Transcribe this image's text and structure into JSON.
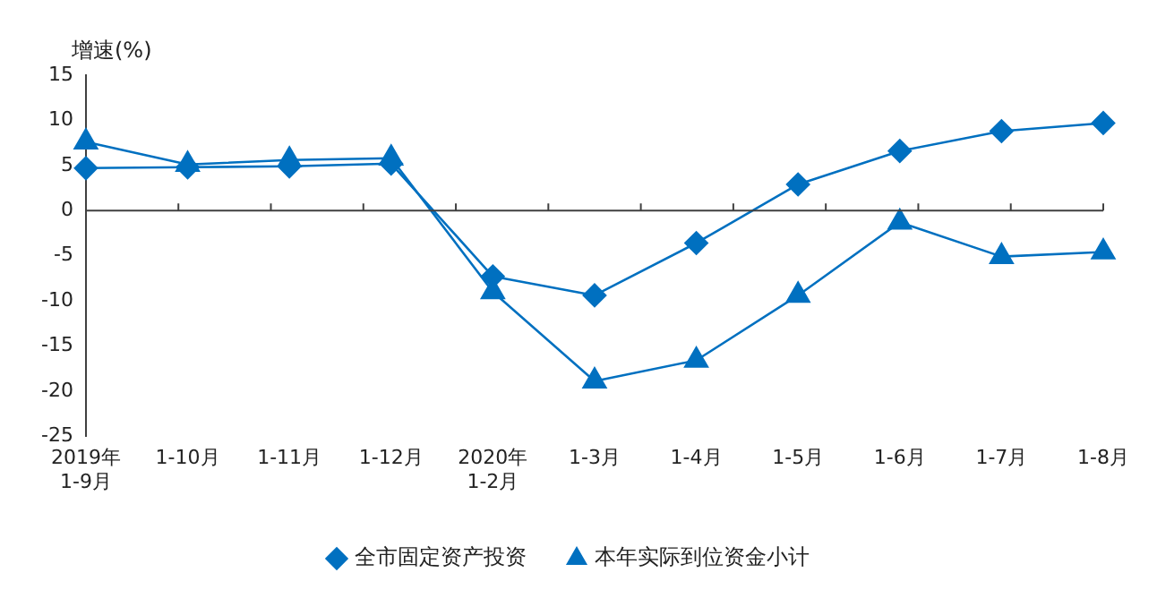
{
  "chart_data": {
    "type": "line",
    "ylabel": "增速(%)",
    "categories": [
      "2019年\n1-9月",
      "1-10月",
      "1-11月",
      "1-12月",
      "2020年\n1-2月",
      "1-3月",
      "1-4月",
      "1-5月",
      "1-6月",
      "1-7月",
      "1-8月"
    ],
    "series": [
      {
        "name": "全市固定资产投资",
        "color": "#0070c0",
        "marker": "diamond",
        "values": [
          4.7,
          4.8,
          4.9,
          5.2,
          -7.3,
          -9.4,
          -3.6,
          2.9,
          6.6,
          8.8,
          9.7
        ]
      },
      {
        "name": "本年实际到位资金小计",
        "color": "#0070c0",
        "marker": "triangle",
        "values": [
          7.6,
          5.1,
          5.6,
          5.8,
          -9.0,
          -18.9,
          -16.6,
          -9.4,
          -1.3,
          -5.1,
          -4.6
        ]
      }
    ],
    "ylim": [
      -25,
      15
    ],
    "yticks": [
      -25,
      -20,
      -15,
      -10,
      -5,
      0,
      5,
      10,
      15
    ],
    "ref_lines": [
      {
        "axis": "y",
        "value": 0,
        "color": "#404040"
      }
    ],
    "grid": false,
    "legend": "bottom",
    "line_style": "solid"
  }
}
